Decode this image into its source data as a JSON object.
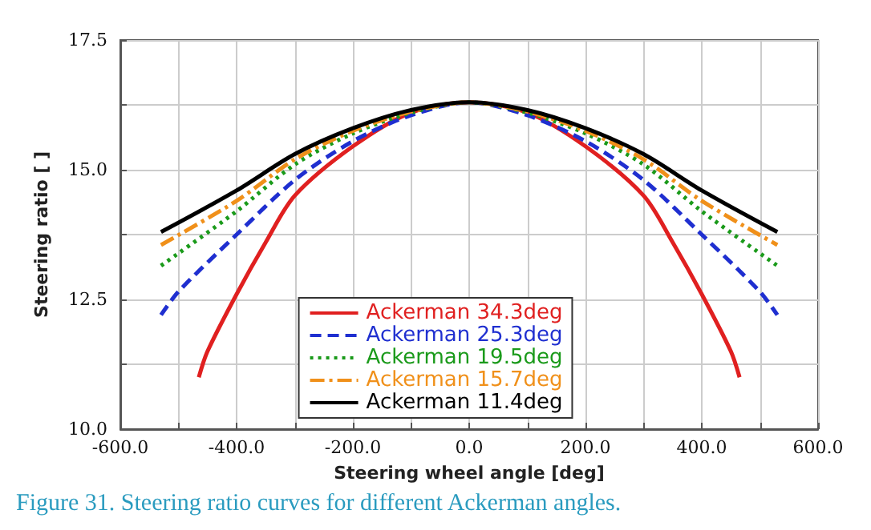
{
  "chart_data": {
    "type": "line",
    "xlabel": "Steering wheel angle [deg]",
    "ylabel": "Steering ratio [ ]",
    "annotations": [
      "Figure 31. Steering ratio curves for different Ackerman angles."
    ],
    "series": [
      {
        "name": "Ackerman 34.3deg",
        "color": "#e02020",
        "line_style": "solid",
        "x": [
          -465,
          -450,
          -400,
          -350,
          -300,
          -200,
          -100,
          0,
          100,
          200,
          300,
          350,
          400,
          450,
          465
        ],
        "values": [
          11.0,
          11.5,
          12.6,
          13.6,
          14.5,
          15.45,
          16.1,
          16.3,
          16.1,
          15.45,
          14.5,
          13.6,
          12.6,
          11.5,
          11.0
        ]
      },
      {
        "name": "Ackerman 25.3deg",
        "color": "#1f2fd0",
        "line_style": "dashed",
        "x": [
          -530,
          -500,
          -400,
          -300,
          -200,
          -100,
          0,
          100,
          200,
          300,
          400,
          500,
          530
        ],
        "values": [
          12.2,
          12.65,
          13.75,
          14.8,
          15.55,
          16.05,
          16.3,
          16.05,
          15.55,
          14.8,
          13.75,
          12.65,
          12.2
        ]
      },
      {
        "name": "Ackerman 19.5deg",
        "color": "#1a9a1a",
        "line_style": "dotted",
        "x": [
          -530,
          -400,
          -300,
          -200,
          -100,
          0,
          100,
          200,
          300,
          400,
          530
        ],
        "values": [
          13.15,
          14.2,
          15.1,
          15.7,
          16.1,
          16.3,
          16.1,
          15.7,
          15.1,
          14.2,
          13.15
        ]
      },
      {
        "name": "Ackerman 15.7deg",
        "color": "#f0901a",
        "line_style": "dashdot",
        "x": [
          -530,
          -400,
          -300,
          -200,
          -100,
          0,
          100,
          200,
          300,
          400,
          530
        ],
        "values": [
          13.55,
          14.4,
          15.2,
          15.75,
          16.12,
          16.3,
          16.12,
          15.75,
          15.2,
          14.4,
          13.55
        ]
      },
      {
        "name": "Ackerman 11.4deg",
        "color": "#000000",
        "line_style": "solid",
        "x": [
          -530,
          -400,
          -300,
          -200,
          -100,
          0,
          100,
          200,
          300,
          400,
          530
        ],
        "values": [
          13.8,
          14.6,
          15.3,
          15.8,
          16.15,
          16.3,
          16.15,
          15.8,
          15.3,
          14.6,
          13.8
        ]
      }
    ],
    "xlim": [
      -600,
      600
    ],
    "xticks": [
      {
        "value": -600,
        "label": "-600.0"
      },
      {
        "value": -500,
        "label": null
      },
      {
        "value": -400,
        "label": "-400.0"
      },
      {
        "value": -300,
        "label": null
      },
      {
        "value": -200,
        "label": "-200.0"
      },
      {
        "value": -100,
        "label": null
      },
      {
        "value": 0,
        "label": "0.0"
      },
      {
        "value": 100,
        "label": null
      },
      {
        "value": 200,
        "label": "200.0"
      },
      {
        "value": 300,
        "label": null
      },
      {
        "value": 400,
        "label": "400.0"
      },
      {
        "value": 500,
        "label": null
      },
      {
        "value": 600,
        "label": "600.0"
      }
    ],
    "ylim": [
      10,
      17.5
    ],
    "yticks": [
      {
        "value": 10,
        "label": "10.0"
      },
      {
        "value": 11.25,
        "label": null
      },
      {
        "value": 12.5,
        "label": "12.5"
      },
      {
        "value": 13.75,
        "label": null
      },
      {
        "value": 15,
        "label": "15.0"
      },
      {
        "value": 16.25,
        "label": null
      },
      {
        "value": 17.5,
        "label": "17.5"
      }
    ],
    "grid": true,
    "legend": "bottom",
    "marker": "none"
  }
}
